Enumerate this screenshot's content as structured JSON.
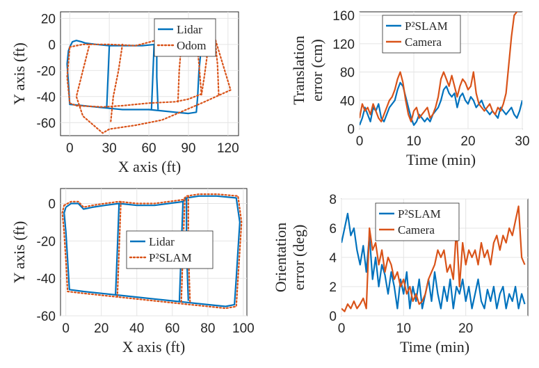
{
  "chart_data": [
    {
      "type": "line",
      "id": "p1",
      "xlabel": "X axis (ft)",
      "ylabel": "Y axis (ft)",
      "xlim": [
        -7,
        128
      ],
      "ylim": [
        -70,
        25
      ],
      "xticks": [
        0,
        30,
        60,
        90,
        120
      ],
      "yticks": [
        20,
        0,
        -20,
        -40,
        -60
      ],
      "grid": true,
      "legend_position": "top-right",
      "series": [
        {
          "name": "Lidar",
          "color": "#0072BD",
          "style": "solid",
          "x": [
            0,
            2,
            5,
            9,
            12,
            20,
            30,
            45,
            55,
            65,
            75,
            88,
            98,
            99,
            98,
            97,
            96,
            90,
            80,
            70,
            60,
            50,
            40,
            30,
            20,
            10,
            0,
            -1,
            -2,
            -1,
            0
          ],
          "y": [
            -2,
            2,
            3,
            2,
            1,
            0,
            -1,
            -1,
            -1,
            0,
            1,
            1,
            0,
            -10,
            -20,
            -40,
            -52,
            -53,
            -52,
            -51,
            -50,
            -50,
            -50,
            -49,
            -48,
            -47,
            -46,
            -30,
            -15,
            -5,
            -2
          ],
          "paths": [
            {
              "x": [
                30,
                29,
                28
              ],
              "y": [
                -1,
                -25,
                -49
              ]
            },
            {
              "x": [
                64,
                63,
                62
              ],
              "y": [
                0,
                -25,
                -50
              ]
            },
            {
              "x": [
                66,
                66,
                67
              ],
              "y": [
                2,
                -25,
                -50
              ]
            }
          ]
        },
        {
          "name": "Odom",
          "color": "#D95319",
          "style": "dotted",
          "x": [
            0,
            10,
            30,
            50,
            65,
            75,
            90,
            103,
            104,
            102,
            100,
            90,
            80,
            60,
            40,
            25,
            5,
            0,
            -2,
            0
          ],
          "y": [
            -2,
            0,
            0,
            -1,
            3,
            5,
            5,
            3,
            -10,
            -25,
            -38,
            -42,
            -44,
            -45,
            -47,
            -48,
            -47,
            -45,
            -25,
            -2
          ],
          "paths": [
            {
              "x": [
                75,
                90,
                110,
                122,
                100,
                70,
                50,
                30,
                25,
                10,
                5,
                10,
                15
              ],
              "y": [
                8,
                7,
                5,
                -35,
                -45,
                -58,
                -62,
                -65,
                -68,
                -55,
                -40,
                -20,
                0
              ]
            },
            {
              "x": [
                40,
                37,
                33,
                31
              ],
              "y": [
                0,
                -20,
                -40,
                -60
              ]
            },
            {
              "x": [
                85,
                83,
                82
              ],
              "y": [
                5,
                -20,
                -45
              ]
            },
            {
              "x": [
                96,
                98,
                100
              ],
              "y": [
                5,
                -15,
                -40
              ]
            },
            {
              "x": [
                110,
                112,
                113
              ],
              "y": [
                5,
                -15,
                -40
              ]
            }
          ]
        }
      ]
    },
    {
      "type": "line",
      "id": "p2",
      "xlabel": "Time (min)",
      "ylabel": [
        "Translation",
        "error (cm)"
      ],
      "xlim": [
        0,
        30
      ],
      "ylim": [
        0,
        165
      ],
      "xticks": [
        0,
        10,
        20,
        30
      ],
      "yticks": [
        160,
        120,
        80,
        40,
        0
      ],
      "grid": true,
      "legend_position": "top-left",
      "series": [
        {
          "name": "P²SLAM",
          "color": "#0072BD",
          "style": "solid",
          "x": [
            0,
            0.5,
            1,
            1.5,
            2,
            2.5,
            3,
            3.5,
            4,
            4.5,
            5,
            5.5,
            6,
            6.5,
            7,
            7.5,
            8,
            8.5,
            9,
            9.5,
            10,
            10.5,
            11,
            11.5,
            12,
            12.5,
            13,
            13.5,
            14,
            14.5,
            15,
            15.5,
            16,
            16.5,
            17,
            17.5,
            18,
            18.5,
            19,
            19.5,
            20,
            20.5,
            21,
            21.5,
            22,
            22.5,
            23,
            23.5,
            24,
            24.5,
            25,
            25.5,
            26,
            26.5,
            27,
            27.5,
            28,
            28.5,
            29,
            29.5,
            30
          ],
          "y": [
            5,
            15,
            30,
            20,
            10,
            30,
            25,
            35,
            15,
            10,
            20,
            30,
            35,
            40,
            55,
            65,
            60,
            45,
            30,
            15,
            5,
            10,
            20,
            15,
            10,
            15,
            10,
            20,
            25,
            30,
            40,
            55,
            60,
            50,
            45,
            50,
            30,
            45,
            50,
            40,
            35,
            45,
            40,
            30,
            35,
            40,
            30,
            25,
            20,
            25,
            20,
            15,
            30,
            25,
            20,
            25,
            30,
            20,
            15,
            25,
            40
          ]
        },
        {
          "name": "Camera",
          "color": "#D95319",
          "style": "solid",
          "x": [
            0,
            0.5,
            1,
            1.5,
            2,
            2.5,
            3,
            3.5,
            4,
            4.5,
            5,
            5.5,
            6,
            6.5,
            7,
            7.5,
            8,
            8.5,
            9,
            9.5,
            10,
            10.5,
            11,
            11.5,
            12,
            12.5,
            13,
            13.5,
            14,
            14.5,
            15,
            15.5,
            16,
            16.5,
            17,
            17.5,
            18,
            18.5,
            19,
            19.5,
            20,
            20.5,
            21,
            21.5,
            22,
            22.5,
            23,
            23.5,
            24,
            24.5,
            25,
            25.5,
            26,
            26.5,
            27,
            27.5,
            28,
            28.5,
            29,
            29.5,
            30
          ],
          "y": [
            15,
            35,
            25,
            30,
            20,
            35,
            25,
            15,
            10,
            20,
            30,
            40,
            45,
            55,
            70,
            80,
            65,
            40,
            20,
            10,
            25,
            30,
            15,
            20,
            25,
            30,
            15,
            20,
            30,
            45,
            70,
            80,
            70,
            60,
            75,
            60,
            45,
            60,
            70,
            65,
            55,
            60,
            80,
            50,
            35,
            30,
            25,
            30,
            35,
            25,
            20,
            30,
            25,
            35,
            50,
            90,
            130,
            160,
            165,
            168,
            170
          ]
        }
      ]
    },
    {
      "type": "line",
      "id": "p3",
      "xlabel": "X axis (ft)",
      "ylabel": "Y axis (ft)",
      "xlim": [
        -3,
        102
      ],
      "ylim": [
        -60,
        8
      ],
      "xticks": [
        0,
        20,
        40,
        60,
        80,
        100
      ],
      "yticks": [
        0,
        -20,
        -40,
        -60
      ],
      "grid": true,
      "legend_position": "center",
      "series": [
        {
          "name": "Lidar",
          "color": "#0072BD",
          "style": "solid",
          "x": [
            0,
            3,
            7,
            10,
            15,
            22,
            30,
            40,
            50,
            58,
            66,
            68,
            75,
            85,
            96,
            98,
            97,
            96,
            95,
            90,
            80,
            70,
            60,
            50,
            40,
            30,
            20,
            10,
            2,
            1,
            0,
            -1,
            0
          ],
          "y": [
            -2,
            0,
            0,
            -3,
            -2,
            -1,
            0,
            -1,
            -1,
            0,
            1,
            3,
            4,
            4,
            3,
            -10,
            -25,
            -40,
            -54,
            -55,
            -54,
            -53,
            -52,
            -51,
            -50,
            -49,
            -48,
            -47,
            -46,
            -30,
            -15,
            -5,
            -2
          ],
          "paths": [
            {
              "x": [
                30,
                29,
                28
              ],
              "y": [
                0,
                -25,
                -49
              ]
            },
            {
              "x": [
                66,
                65,
                64
              ],
              "y": [
                1,
                -25,
                -52
              ]
            },
            {
              "x": [
                68,
                68,
                69
              ],
              "y": [
                3,
                -25,
                -52
              ]
            }
          ]
        },
        {
          "name": "P²SLAM",
          "color": "#D95319",
          "style": "dotted",
          "x": [
            -1,
            3,
            7,
            10,
            15,
            22,
            30,
            40,
            50,
            58,
            66,
            68,
            75,
            85,
            97,
            99,
            98,
            97,
            96,
            90,
            80,
            70,
            60,
            50,
            40,
            30,
            20,
            10,
            1,
            0,
            -1,
            -2,
            -1
          ],
          "y": [
            -1,
            1,
            1,
            -2,
            -1,
            0,
            1,
            0,
            0,
            1,
            2,
            4,
            5,
            5,
            4,
            -10,
            -25,
            -40,
            -55,
            -56,
            -55,
            -54,
            -53,
            -52,
            -51,
            -50,
            -49,
            -48,
            -47,
            -30,
            -15,
            -5,
            -1
          ],
          "paths": [
            {
              "x": [
                31,
                30,
                29
              ],
              "y": [
                1,
                -25,
                -50
              ]
            },
            {
              "x": [
                67,
                66,
                65
              ],
              "y": [
                2,
                -25,
                -53
              ]
            },
            {
              "x": [
                69,
                69,
                70
              ],
              "y": [
                4,
                -25,
                -53
              ]
            }
          ]
        }
      ]
    },
    {
      "type": "line",
      "id": "p4",
      "xlabel": "Time (min)",
      "ylabel": [
        "Orientation",
        "error (deg)"
      ],
      "xlim": [
        0,
        30
      ],
      "ylim": [
        0,
        8
      ],
      "xticks": [
        0,
        10,
        20
      ],
      "yticks": [
        8,
        6,
        4,
        2,
        0
      ],
      "grid": true,
      "legend_position": "top-right",
      "series": [
        {
          "name": "P²SLAM",
          "color": "#0072BD",
          "style": "solid",
          "x": [
            0,
            0.5,
            1,
            1.5,
            2,
            2.5,
            3,
            3.5,
            4,
            4.5,
            5,
            5.5,
            6,
            6.5,
            7,
            7.5,
            8,
            8.5,
            9,
            9.5,
            10,
            10.5,
            11,
            11.5,
            12,
            12.5,
            13,
            13.5,
            14,
            14.5,
            15,
            15.5,
            16,
            16.5,
            17,
            17.5,
            18,
            18.5,
            19,
            19.5,
            20,
            20.5,
            21,
            21.5,
            22,
            22.5,
            23,
            23.5,
            24,
            24.5,
            25,
            25.5,
            26,
            26.5,
            27,
            27.5,
            28,
            28.5,
            29,
            29.5
          ],
          "y": [
            5.0,
            6.0,
            7.0,
            5.5,
            6.0,
            4.5,
            3.5,
            4.8,
            3.0,
            5.5,
            2.5,
            4.0,
            2.0,
            3.5,
            2.8,
            1.5,
            3.0,
            2.0,
            0.5,
            2.5,
            1.5,
            3.0,
            0.5,
            2.0,
            1.0,
            2.5,
            0.5,
            1.5,
            2.5,
            1.0,
            3.0,
            1.5,
            0.5,
            2.0,
            1.0,
            2.5,
            0.5,
            2.0,
            1.5,
            2.5,
            1.0,
            2.0,
            0.5,
            1.5,
            2.5,
            1.0,
            0.5,
            1.8,
            1.0,
            2.0,
            0.5,
            1.5,
            2.0,
            0.5,
            1.5,
            1.0,
            2.0,
            0.5,
            1.5,
            0.8
          ]
        },
        {
          "name": "Camera",
          "color": "#D95319",
          "style": "solid",
          "x": [
            0,
            0.5,
            1,
            1.5,
            2,
            2.5,
            3,
            3.5,
            4,
            4.5,
            5,
            5.5,
            6,
            6.5,
            7,
            7.5,
            8,
            8.5,
            9,
            9.5,
            10,
            10.5,
            11,
            11.5,
            12,
            12.5,
            13,
            13.5,
            14,
            14.5,
            15,
            15.5,
            16,
            16.5,
            17,
            17.5,
            18,
            18.5,
            19,
            19.5,
            20,
            20.5,
            21,
            21.5,
            22,
            22.5,
            23,
            23.5,
            24,
            24.5,
            25,
            25.5,
            26,
            26.5,
            27,
            27.5,
            28,
            28.5,
            29,
            29.5
          ],
          "y": [
            0.5,
            0.3,
            0.8,
            0.5,
            1.0,
            0.5,
            0.8,
            1.2,
            0.5,
            6.0,
            4.5,
            5.0,
            3.5,
            4.5,
            3.0,
            4.0,
            3.5,
            2.5,
            3.0,
            2.0,
            2.5,
            1.5,
            2.0,
            1.0,
            1.5,
            0.8,
            1.0,
            1.5,
            2.5,
            3.0,
            3.5,
            4.5,
            4.0,
            4.5,
            3.0,
            3.5,
            2.5,
            6.0,
            2.0,
            5.0,
            3.5,
            4.5,
            4.0,
            4.5,
            3.5,
            5.0,
            4.0,
            4.5,
            3.5,
            5.0,
            5.5,
            4.5,
            5.5,
            5.0,
            6.0,
            5.5,
            6.5,
            7.5,
            4.0,
            3.5
          ]
        }
      ]
    }
  ]
}
